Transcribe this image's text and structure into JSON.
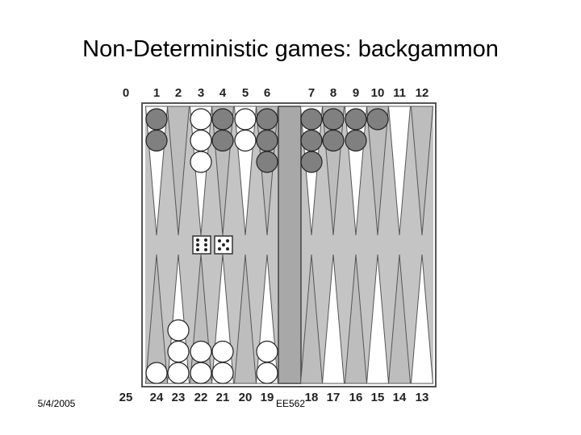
{
  "title": "Non-Deterministic games: backgammon",
  "board": {
    "top_labels": [
      "0",
      "1",
      "2",
      "3",
      "4",
      "5",
      "6",
      "7",
      "8",
      "9",
      "10",
      "11",
      "12"
    ],
    "bottom_labels": [
      "25",
      "24",
      "23",
      "22",
      "21",
      "20",
      "19",
      "18",
      "17",
      "16",
      "15",
      "14",
      "13"
    ]
  },
  "footer": {
    "date": "5/4/2005",
    "course": "EE562"
  }
}
